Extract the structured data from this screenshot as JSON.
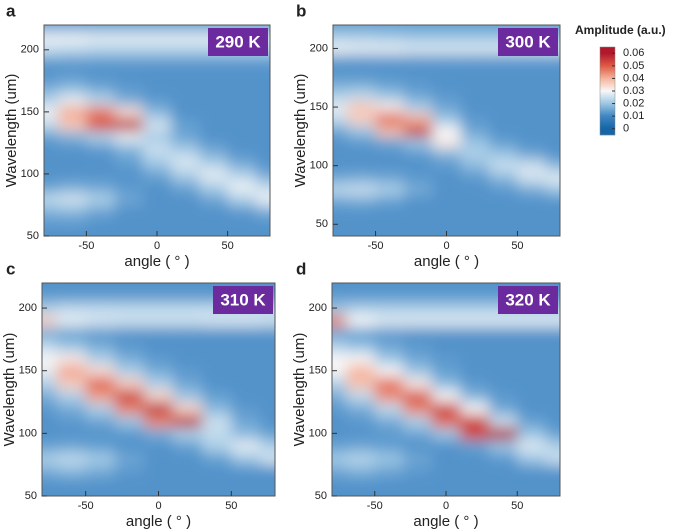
{
  "chart_data": [
    {
      "type": "heatmap",
      "label": "a",
      "annotation": "290 K",
      "xlabel": "angle ( ° )",
      "ylabel": "Wavelength (um)",
      "xlim": [
        -80,
        80
      ],
      "ylim": [
        50,
        220
      ],
      "xticks": [
        -50,
        0,
        50
      ],
      "yticks": [
        50,
        100,
        150,
        200
      ],
      "x": [
        -80,
        -60,
        -40,
        -20,
        0,
        20,
        40,
        60,
        80
      ],
      "y": [
        50,
        60,
        70,
        80,
        90,
        100,
        110,
        120,
        130,
        140,
        150,
        160,
        170,
        180,
        190,
        200,
        210,
        220
      ],
      "z": [
        [
          0.012,
          0.012,
          0.012,
          0.012,
          0.012,
          0.012,
          0.012,
          0.012,
          0.012
        ],
        [
          0.013,
          0.013,
          0.012,
          0.012,
          0.012,
          0.012,
          0.012,
          0.012,
          0.012
        ],
        [
          0.017,
          0.018,
          0.015,
          0.012,
          0.012,
          0.012,
          0.012,
          0.013,
          0.016
        ],
        [
          0.024,
          0.026,
          0.022,
          0.015,
          0.012,
          0.012,
          0.015,
          0.022,
          0.029
        ],
        [
          0.014,
          0.016,
          0.015,
          0.013,
          0.012,
          0.015,
          0.022,
          0.029,
          0.024
        ],
        [
          0.012,
          0.012,
          0.012,
          0.012,
          0.015,
          0.022,
          0.028,
          0.022,
          0.015
        ],
        [
          0.012,
          0.012,
          0.012,
          0.014,
          0.021,
          0.027,
          0.021,
          0.015,
          0.012
        ],
        [
          0.012,
          0.012,
          0.013,
          0.017,
          0.025,
          0.021,
          0.015,
          0.012,
          0.012
        ],
        [
          0.014,
          0.017,
          0.022,
          0.028,
          0.021,
          0.015,
          0.012,
          0.012,
          0.012
        ],
        [
          0.024,
          0.037,
          0.052,
          0.058,
          0.026,
          0.014,
          0.012,
          0.012,
          0.012
        ],
        [
          0.029,
          0.041,
          0.046,
          0.034,
          0.018,
          0.012,
          0.012,
          0.012,
          0.012
        ],
        [
          0.022,
          0.028,
          0.023,
          0.016,
          0.013,
          0.012,
          0.012,
          0.012,
          0.012
        ],
        [
          0.016,
          0.018,
          0.015,
          0.013,
          0.012,
          0.012,
          0.012,
          0.012,
          0.012
        ],
        [
          0.012,
          0.013,
          0.012,
          0.012,
          0.012,
          0.012,
          0.012,
          0.012,
          0.012
        ],
        [
          0.013,
          0.013,
          0.013,
          0.013,
          0.013,
          0.013,
          0.013,
          0.013,
          0.013
        ],
        [
          0.024,
          0.023,
          0.022,
          0.022,
          0.022,
          0.022,
          0.022,
          0.022,
          0.022
        ],
        [
          0.029,
          0.029,
          0.028,
          0.028,
          0.028,
          0.028,
          0.028,
          0.027,
          0.027
        ],
        [
          0.014,
          0.014,
          0.014,
          0.014,
          0.014,
          0.014,
          0.014,
          0.014,
          0.014
        ]
      ]
    },
    {
      "type": "heatmap",
      "label": "b",
      "annotation": "300 K",
      "xlabel": "angle ( ° )",
      "ylabel": "Wavelength (um)",
      "xlim": [
        -80,
        80
      ],
      "ylim": [
        40,
        220
      ],
      "xticks": [
        -50,
        0,
        50
      ],
      "yticks": [
        50,
        100,
        150,
        200
      ],
      "x": [
        -80,
        -60,
        -40,
        -20,
        0,
        20,
        40,
        60,
        80
      ],
      "y": [
        40,
        50,
        60,
        70,
        80,
        90,
        100,
        110,
        120,
        130,
        140,
        150,
        160,
        170,
        180,
        190,
        200,
        210,
        220
      ],
      "z": [
        [
          0.012,
          0.012,
          0.012,
          0.012,
          0.012,
          0.012,
          0.012,
          0.012,
          0.012
        ],
        [
          0.012,
          0.012,
          0.012,
          0.012,
          0.012,
          0.012,
          0.012,
          0.012,
          0.012
        ],
        [
          0.012,
          0.012,
          0.012,
          0.012,
          0.012,
          0.012,
          0.012,
          0.012,
          0.012
        ],
        [
          0.015,
          0.016,
          0.014,
          0.012,
          0.012,
          0.012,
          0.012,
          0.012,
          0.012
        ],
        [
          0.024,
          0.025,
          0.022,
          0.016,
          0.012,
          0.012,
          0.013,
          0.016,
          0.02
        ],
        [
          0.015,
          0.016,
          0.015,
          0.013,
          0.012,
          0.013,
          0.018,
          0.026,
          0.028
        ],
        [
          0.012,
          0.012,
          0.012,
          0.012,
          0.013,
          0.018,
          0.025,
          0.026,
          0.018
        ],
        [
          0.012,
          0.012,
          0.012,
          0.013,
          0.017,
          0.022,
          0.02,
          0.015,
          0.012
        ],
        [
          0.012,
          0.013,
          0.015,
          0.02,
          0.032,
          0.02,
          0.014,
          0.012,
          0.012
        ],
        [
          0.015,
          0.02,
          0.038,
          0.055,
          0.03,
          0.015,
          0.012,
          0.012,
          0.012
        ],
        [
          0.024,
          0.036,
          0.05,
          0.04,
          0.02,
          0.013,
          0.012,
          0.012,
          0.012
        ],
        [
          0.028,
          0.037,
          0.032,
          0.022,
          0.015,
          0.012,
          0.012,
          0.012,
          0.012
        ],
        [
          0.022,
          0.024,
          0.02,
          0.015,
          0.013,
          0.012,
          0.012,
          0.012,
          0.012
        ],
        [
          0.016,
          0.016,
          0.014,
          0.013,
          0.012,
          0.012,
          0.012,
          0.012,
          0.012
        ],
        [
          0.012,
          0.012,
          0.012,
          0.012,
          0.012,
          0.012,
          0.012,
          0.012,
          0.012
        ],
        [
          0.013,
          0.013,
          0.013,
          0.013,
          0.013,
          0.013,
          0.013,
          0.013,
          0.013
        ],
        [
          0.029,
          0.028,
          0.028,
          0.027,
          0.027,
          0.027,
          0.027,
          0.027,
          0.027
        ],
        [
          0.022,
          0.022,
          0.021,
          0.02,
          0.02,
          0.02,
          0.02,
          0.02,
          0.02
        ],
        [
          0.014,
          0.014,
          0.014,
          0.014,
          0.014,
          0.014,
          0.014,
          0.014,
          0.014
        ]
      ]
    },
    {
      "type": "heatmap",
      "label": "c",
      "annotation": "310 K",
      "xlabel": "angle ( ° )",
      "ylabel": "Wavelength (um)",
      "xlim": [
        -80,
        80
      ],
      "ylim": [
        50,
        220
      ],
      "xticks": [
        -50,
        0,
        50
      ],
      "yticks": [
        50,
        100,
        150,
        200
      ],
      "x": [
        -80,
        -60,
        -40,
        -20,
        0,
        20,
        40,
        60,
        80
      ],
      "y": [
        50,
        60,
        70,
        80,
        90,
        100,
        110,
        120,
        130,
        140,
        150,
        160,
        170,
        180,
        190,
        200,
        210,
        220
      ],
      "z": [
        [
          0.012,
          0.012,
          0.012,
          0.012,
          0.012,
          0.012,
          0.012,
          0.012,
          0.012
        ],
        [
          0.012,
          0.012,
          0.012,
          0.012,
          0.012,
          0.012,
          0.012,
          0.012,
          0.012
        ],
        [
          0.016,
          0.018,
          0.016,
          0.013,
          0.012,
          0.012,
          0.012,
          0.012,
          0.012
        ],
        [
          0.022,
          0.024,
          0.021,
          0.015,
          0.012,
          0.012,
          0.014,
          0.02,
          0.026
        ],
        [
          0.014,
          0.015,
          0.014,
          0.012,
          0.012,
          0.014,
          0.022,
          0.028,
          0.022
        ],
        [
          0.012,
          0.012,
          0.012,
          0.013,
          0.016,
          0.022,
          0.024,
          0.018,
          0.014
        ],
        [
          0.012,
          0.013,
          0.015,
          0.02,
          0.045,
          0.058,
          0.025,
          0.015,
          0.012
        ],
        [
          0.013,
          0.016,
          0.022,
          0.045,
          0.058,
          0.035,
          0.018,
          0.013,
          0.012
        ],
        [
          0.016,
          0.022,
          0.042,
          0.055,
          0.035,
          0.02,
          0.014,
          0.012,
          0.012
        ],
        [
          0.022,
          0.036,
          0.05,
          0.036,
          0.022,
          0.015,
          0.012,
          0.012,
          0.012
        ],
        [
          0.028,
          0.042,
          0.034,
          0.022,
          0.016,
          0.013,
          0.012,
          0.012,
          0.012
        ],
        [
          0.03,
          0.032,
          0.022,
          0.016,
          0.013,
          0.012,
          0.012,
          0.012,
          0.012
        ],
        [
          0.024,
          0.02,
          0.016,
          0.013,
          0.012,
          0.012,
          0.012,
          0.012,
          0.012
        ],
        [
          0.016,
          0.014,
          0.013,
          0.012,
          0.012,
          0.012,
          0.012,
          0.012,
          0.012
        ],
        [
          0.036,
          0.028,
          0.026,
          0.025,
          0.025,
          0.025,
          0.026,
          0.026,
          0.025
        ],
        [
          0.022,
          0.024,
          0.024,
          0.024,
          0.024,
          0.024,
          0.024,
          0.024,
          0.024
        ],
        [
          0.013,
          0.013,
          0.013,
          0.013,
          0.013,
          0.013,
          0.013,
          0.013,
          0.013
        ],
        [
          0.012,
          0.012,
          0.012,
          0.012,
          0.012,
          0.012,
          0.012,
          0.012,
          0.012
        ]
      ]
    },
    {
      "type": "heatmap",
      "label": "d",
      "annotation": "320 K",
      "xlabel": "angle ( ° )",
      "ylabel": "Wavelength (um)",
      "xlim": [
        -80,
        80
      ],
      "ylim": [
        50,
        220
      ],
      "xticks": [
        -50,
        0,
        50
      ],
      "yticks": [
        50,
        100,
        150,
        200
      ],
      "x": [
        -80,
        -60,
        -40,
        -20,
        0,
        20,
        40,
        60,
        80
      ],
      "y": [
        50,
        60,
        70,
        80,
        90,
        100,
        110,
        120,
        130,
        140,
        150,
        160,
        170,
        180,
        190,
        200,
        210,
        220
      ],
      "z": [
        [
          0.012,
          0.012,
          0.012,
          0.012,
          0.012,
          0.012,
          0.012,
          0.012,
          0.012
        ],
        [
          0.012,
          0.012,
          0.012,
          0.012,
          0.012,
          0.012,
          0.012,
          0.012,
          0.012
        ],
        [
          0.015,
          0.017,
          0.015,
          0.013,
          0.012,
          0.012,
          0.012,
          0.012,
          0.012
        ],
        [
          0.021,
          0.023,
          0.02,
          0.015,
          0.012,
          0.012,
          0.013,
          0.02,
          0.025
        ],
        [
          0.014,
          0.015,
          0.014,
          0.012,
          0.012,
          0.014,
          0.02,
          0.027,
          0.022
        ],
        [
          0.012,
          0.012,
          0.013,
          0.015,
          0.02,
          0.052,
          0.06,
          0.02,
          0.014
        ],
        [
          0.012,
          0.013,
          0.016,
          0.022,
          0.048,
          0.055,
          0.025,
          0.014,
          0.012
        ],
        [
          0.013,
          0.016,
          0.024,
          0.045,
          0.055,
          0.03,
          0.015,
          0.012,
          0.012
        ],
        [
          0.016,
          0.024,
          0.044,
          0.052,
          0.03,
          0.017,
          0.013,
          0.012,
          0.012
        ],
        [
          0.022,
          0.038,
          0.048,
          0.032,
          0.018,
          0.013,
          0.012,
          0.012,
          0.012
        ],
        [
          0.03,
          0.04,
          0.03,
          0.02,
          0.014,
          0.012,
          0.012,
          0.012,
          0.012
        ],
        [
          0.03,
          0.03,
          0.02,
          0.015,
          0.013,
          0.012,
          0.012,
          0.012,
          0.012
        ],
        [
          0.022,
          0.019,
          0.015,
          0.013,
          0.012,
          0.012,
          0.012,
          0.012,
          0.012
        ],
        [
          0.015,
          0.014,
          0.013,
          0.012,
          0.012,
          0.012,
          0.012,
          0.012,
          0.012
        ],
        [
          0.045,
          0.03,
          0.027,
          0.027,
          0.027,
          0.027,
          0.027,
          0.027,
          0.027
        ],
        [
          0.02,
          0.022,
          0.022,
          0.022,
          0.022,
          0.022,
          0.022,
          0.022,
          0.022
        ],
        [
          0.013,
          0.013,
          0.013,
          0.013,
          0.013,
          0.013,
          0.013,
          0.013,
          0.013
        ],
        [
          0.012,
          0.012,
          0.012,
          0.012,
          0.012,
          0.012,
          0.012,
          0.012,
          0.012
        ]
      ]
    },
    {
      "type": "colorbar",
      "title": "Amplitude (a.u.)",
      "ylim": [
        -0.005,
        0.065
      ],
      "yticks": [
        0,
        0.01,
        0.02,
        0.03,
        0.04,
        0.05,
        0.06
      ],
      "colorscale": [
        [
          0,
          "#1565a8"
        ],
        [
          0.01,
          "#3f86c4"
        ],
        [
          0.02,
          "#9cc6e4"
        ],
        [
          0.03,
          "#f7f7f7"
        ],
        [
          0.04,
          "#f5b39c"
        ],
        [
          0.05,
          "#de5a45"
        ],
        [
          0.06,
          "#b2182b"
        ]
      ]
    }
  ]
}
